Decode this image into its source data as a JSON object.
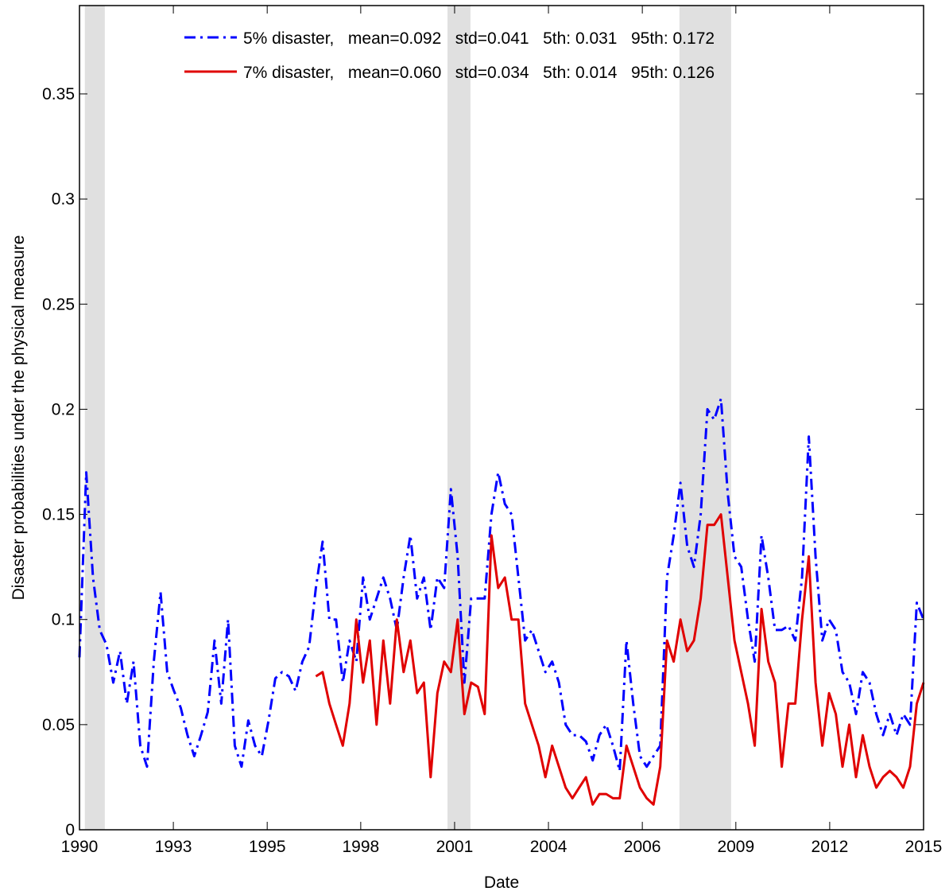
{
  "chart_data": {
    "type": "line",
    "x_label": "Date",
    "y_label": "Disaster probabilities under the physical measure",
    "xlim": [
      1990,
      2015
    ],
    "ylim": [
      0,
      0.392
    ],
    "xticks": [
      1990,
      {
        "value": 1992.78,
        "label": "1993"
      },
      {
        "value": 1995.56,
        "label": "1995"
      },
      {
        "value": 1998.33,
        "label": "1998"
      },
      {
        "value": 2001.11,
        "label": "2001"
      },
      {
        "value": 2003.89,
        "label": "2004"
      },
      {
        "value": 2006.67,
        "label": "2006"
      },
      {
        "value": 2009.44,
        "label": "2009"
      },
      {
        "value": 2012.22,
        "label": "2012"
      },
      2015
    ],
    "yticks": [
      0,
      0.05,
      0.1,
      0.15,
      0.2,
      0.25,
      0.3,
      0.35
    ],
    "grid": false,
    "legend": "top",
    "shaded_regions": [
      [
        1990.16,
        1990.75
      ],
      [
        2000.9,
        2001.58
      ],
      [
        2007.77,
        2009.3
      ]
    ],
    "shade_color": "#e0e0e0",
    "x": [
      1990,
      1990.2,
      1990.4,
      1990.6,
      1990.8,
      1991,
      1991.2,
      1991.4,
      1991.6,
      1991.8,
      1992,
      1992.2,
      1992.4,
      1992.6,
      1992.8,
      1993,
      1993.2,
      1993.4,
      1993.6,
      1993.8,
      1994,
      1994.2,
      1994.4,
      1994.6,
      1994.8,
      1995,
      1995.2,
      1995.4,
      1995.6,
      1995.8,
      1996,
      1996.2,
      1996.4,
      1996.6,
      1996.8,
      1997,
      1997.2,
      1997.4,
      1997.6,
      1997.8,
      1998,
      1998.2,
      1998.4,
      1998.6,
      1998.8,
      1999,
      1999.2,
      1999.4,
      1999.6,
      1999.8,
      2000,
      2000.2,
      2000.4,
      2000.6,
      2000.8,
      2001,
      2001.2,
      2001.4,
      2001.6,
      2001.8,
      2002,
      2002.2,
      2002.4,
      2002.6,
      2002.8,
      2003,
      2003.2,
      2003.4,
      2003.6,
      2003.8,
      2004,
      2004.2,
      2004.4,
      2004.6,
      2004.8,
      2005,
      2005.2,
      2005.4,
      2005.6,
      2005.8,
      2006,
      2006.2,
      2006.4,
      2006.6,
      2006.8,
      2007,
      2007.2,
      2007.4,
      2007.6,
      2007.8,
      2008,
      2008.2,
      2008.4,
      2008.6,
      2008.8,
      2009,
      2009.2,
      2009.4,
      2009.6,
      2009.8,
      2010,
      2010.2,
      2010.4,
      2010.6,
      2010.8,
      2011,
      2011.2,
      2011.4,
      2011.6,
      2011.8,
      2012,
      2012.2,
      2012.4,
      2012.6,
      2012.8,
      2013,
      2013.2,
      2013.4,
      2013.6,
      2013.8,
      2014,
      2014.2,
      2014.4,
      2014.6,
      2014.8,
      2015
    ],
    "series": [
      {
        "name": "5% disaster,   mean=0.092   std=0.041   5th: 0.031   95th: 0.172",
        "color": "#0000ff",
        "dash": "dashdot",
        "values": [
          0.082,
          0.17,
          0.12,
          0.095,
          0.088,
          0.07,
          0.085,
          0.06,
          0.08,
          0.04,
          0.03,
          0.08,
          0.113,
          0.075,
          0.066,
          0.058,
          0.045,
          0.035,
          0.045,
          0.056,
          0.09,
          0.06,
          0.1,
          0.04,
          0.03,
          0.052,
          0.04,
          0.035,
          0.052,
          0.072,
          0.075,
          0.073,
          0.066,
          0.08,
          0.087,
          0.115,
          0.137,
          0.1,
          0.1,
          0.07,
          0.09,
          0.08,
          0.12,
          0.1,
          0.11,
          0.12,
          0.11,
          0.095,
          0.12,
          0.14,
          0.11,
          0.12,
          0.095,
          0.12,
          0.115,
          0.162,
          0.13,
          0.07,
          0.11,
          0.11,
          0.11,
          0.15,
          0.17,
          0.155,
          0.15,
          0.12,
          0.09,
          0.095,
          0.085,
          0.075,
          0.08,
          0.07,
          0.05,
          0.045,
          0.045,
          0.042,
          0.033,
          0.045,
          0.05,
          0.04,
          0.028,
          0.09,
          0.06,
          0.035,
          0.03,
          0.035,
          0.04,
          0.12,
          0.14,
          0.165,
          0.135,
          0.125,
          0.15,
          0.2,
          0.195,
          0.205,
          0.16,
          0.13,
          0.125,
          0.1,
          0.08,
          0.14,
          0.12,
          0.095,
          0.095,
          0.097,
          0.09,
          0.12,
          0.187,
          0.13,
          0.09,
          0.1,
          0.095,
          0.075,
          0.07,
          0.055,
          0.075,
          0.07,
          0.055,
          0.045,
          0.055,
          0.045,
          0.055,
          0.05,
          0.108,
          0.1
        ]
      },
      {
        "name": "7% disaster,   mean=0.060   std=0.034   5th: 0.014   95th: 0.126",
        "color": "#e00000",
        "dash": "solid",
        "values": [
          null,
          null,
          null,
          null,
          null,
          null,
          null,
          null,
          null,
          null,
          null,
          null,
          null,
          null,
          null,
          null,
          null,
          null,
          null,
          null,
          null,
          null,
          null,
          null,
          null,
          null,
          null,
          null,
          null,
          null,
          null,
          null,
          null,
          null,
          null,
          0.073,
          0.075,
          0.06,
          0.05,
          0.04,
          0.06,
          0.1,
          0.07,
          0.09,
          0.05,
          0.09,
          0.06,
          0.1,
          0.075,
          0.09,
          0.065,
          0.07,
          0.025,
          0.065,
          0.08,
          0.075,
          0.1,
          0.055,
          0.07,
          0.068,
          0.055,
          0.14,
          0.115,
          0.12,
          0.1,
          0.1,
          0.06,
          0.05,
          0.04,
          0.025,
          0.04,
          0.03,
          0.02,
          0.015,
          0.02,
          0.025,
          0.012,
          0.017,
          0.017,
          0.015,
          0.015,
          0.04,
          0.03,
          0.02,
          0.015,
          0.012,
          0.03,
          0.09,
          0.08,
          0.1,
          0.085,
          0.09,
          0.11,
          0.145,
          0.145,
          0.15,
          0.12,
          0.09,
          0.075,
          0.06,
          0.04,
          0.105,
          0.08,
          0.07,
          0.03,
          0.06,
          0.06,
          0.1,
          0.13,
          0.07,
          0.04,
          0.065,
          0.055,
          0.03,
          0.05,
          0.025,
          0.045,
          0.03,
          0.02,
          0.025,
          0.028,
          0.025,
          0.02,
          0.03,
          0.06,
          0.07
        ]
      }
    ]
  }
}
